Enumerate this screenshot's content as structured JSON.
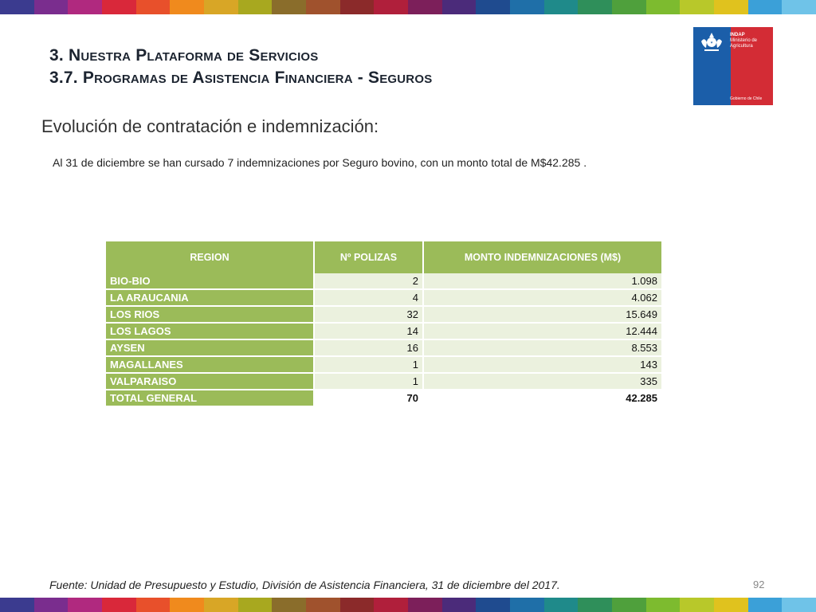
{
  "header": {
    "title_line1": "3. Nuestra Plataforma de Servicios",
    "title_line2": "3.7. Programas de Asistencia Financiera - Seguros"
  },
  "logo": {
    "org": "INDAP",
    "org_sub1": "Ministerio de",
    "org_sub2": "Agricultura",
    "gov": "Gobierno de Chile"
  },
  "content": {
    "subtitle": "Evolución de contratación e indemnización:",
    "note": "Al 31 de diciembre se han cursado 7 indemnizaciones por Seguro bovino, con un monto total de M$42.285 ."
  },
  "table": {
    "headers": [
      "REGION",
      "Nº POLIZAS",
      "MONTO INDEMNIZACIONES (M$)"
    ],
    "rows": [
      {
        "region": "BIO-BIO",
        "polizas": "2",
        "monto": "1.098"
      },
      {
        "region": "LA ARAUCANIA",
        "polizas": "4",
        "monto": "4.062"
      },
      {
        "region": "LOS RIOS",
        "polizas": "32",
        "monto": "15.649"
      },
      {
        "region": "LOS LAGOS",
        "polizas": "14",
        "monto": "12.444"
      },
      {
        "region": "AYSEN",
        "polizas": "16",
        "monto": "8.553"
      },
      {
        "region": "MAGALLANES",
        "polizas": "1",
        "monto": "143"
      },
      {
        "region": "VALPARAISO",
        "polizas": "1",
        "monto": "335"
      }
    ],
    "total": {
      "region": "TOTAL GENERAL",
      "polizas": "70",
      "monto": "42.285"
    }
  },
  "footer": {
    "source": "Fuente: Unidad de Presupuesto y Estudio, División de Asistencia Financiera, 31 de diciembre del 2017.",
    "page_number": "92"
  },
  "colors": {
    "table_header": "#9bbb59",
    "table_cell": "#ebf1de",
    "logo_blue": "#1b5ea9",
    "logo_red": "#d32c35",
    "stripe": [
      "#3b3b8f",
      "#7a2d8e",
      "#b0297f",
      "#d9283a",
      "#e8502b",
      "#f08a1d",
      "#d8a626",
      "#a8a81f",
      "#8a6d2b",
      "#a0522d",
      "#8b2a2a",
      "#b01f3b",
      "#7c1f5a",
      "#4b2b7a",
      "#1f4b8f",
      "#1f6fa8",
      "#1f8a8a",
      "#2f8f5a",
      "#4fa03c",
      "#7dbb2f",
      "#b8c82a",
      "#e0c21e",
      "#3ba0d8",
      "#6fc3e8"
    ]
  }
}
